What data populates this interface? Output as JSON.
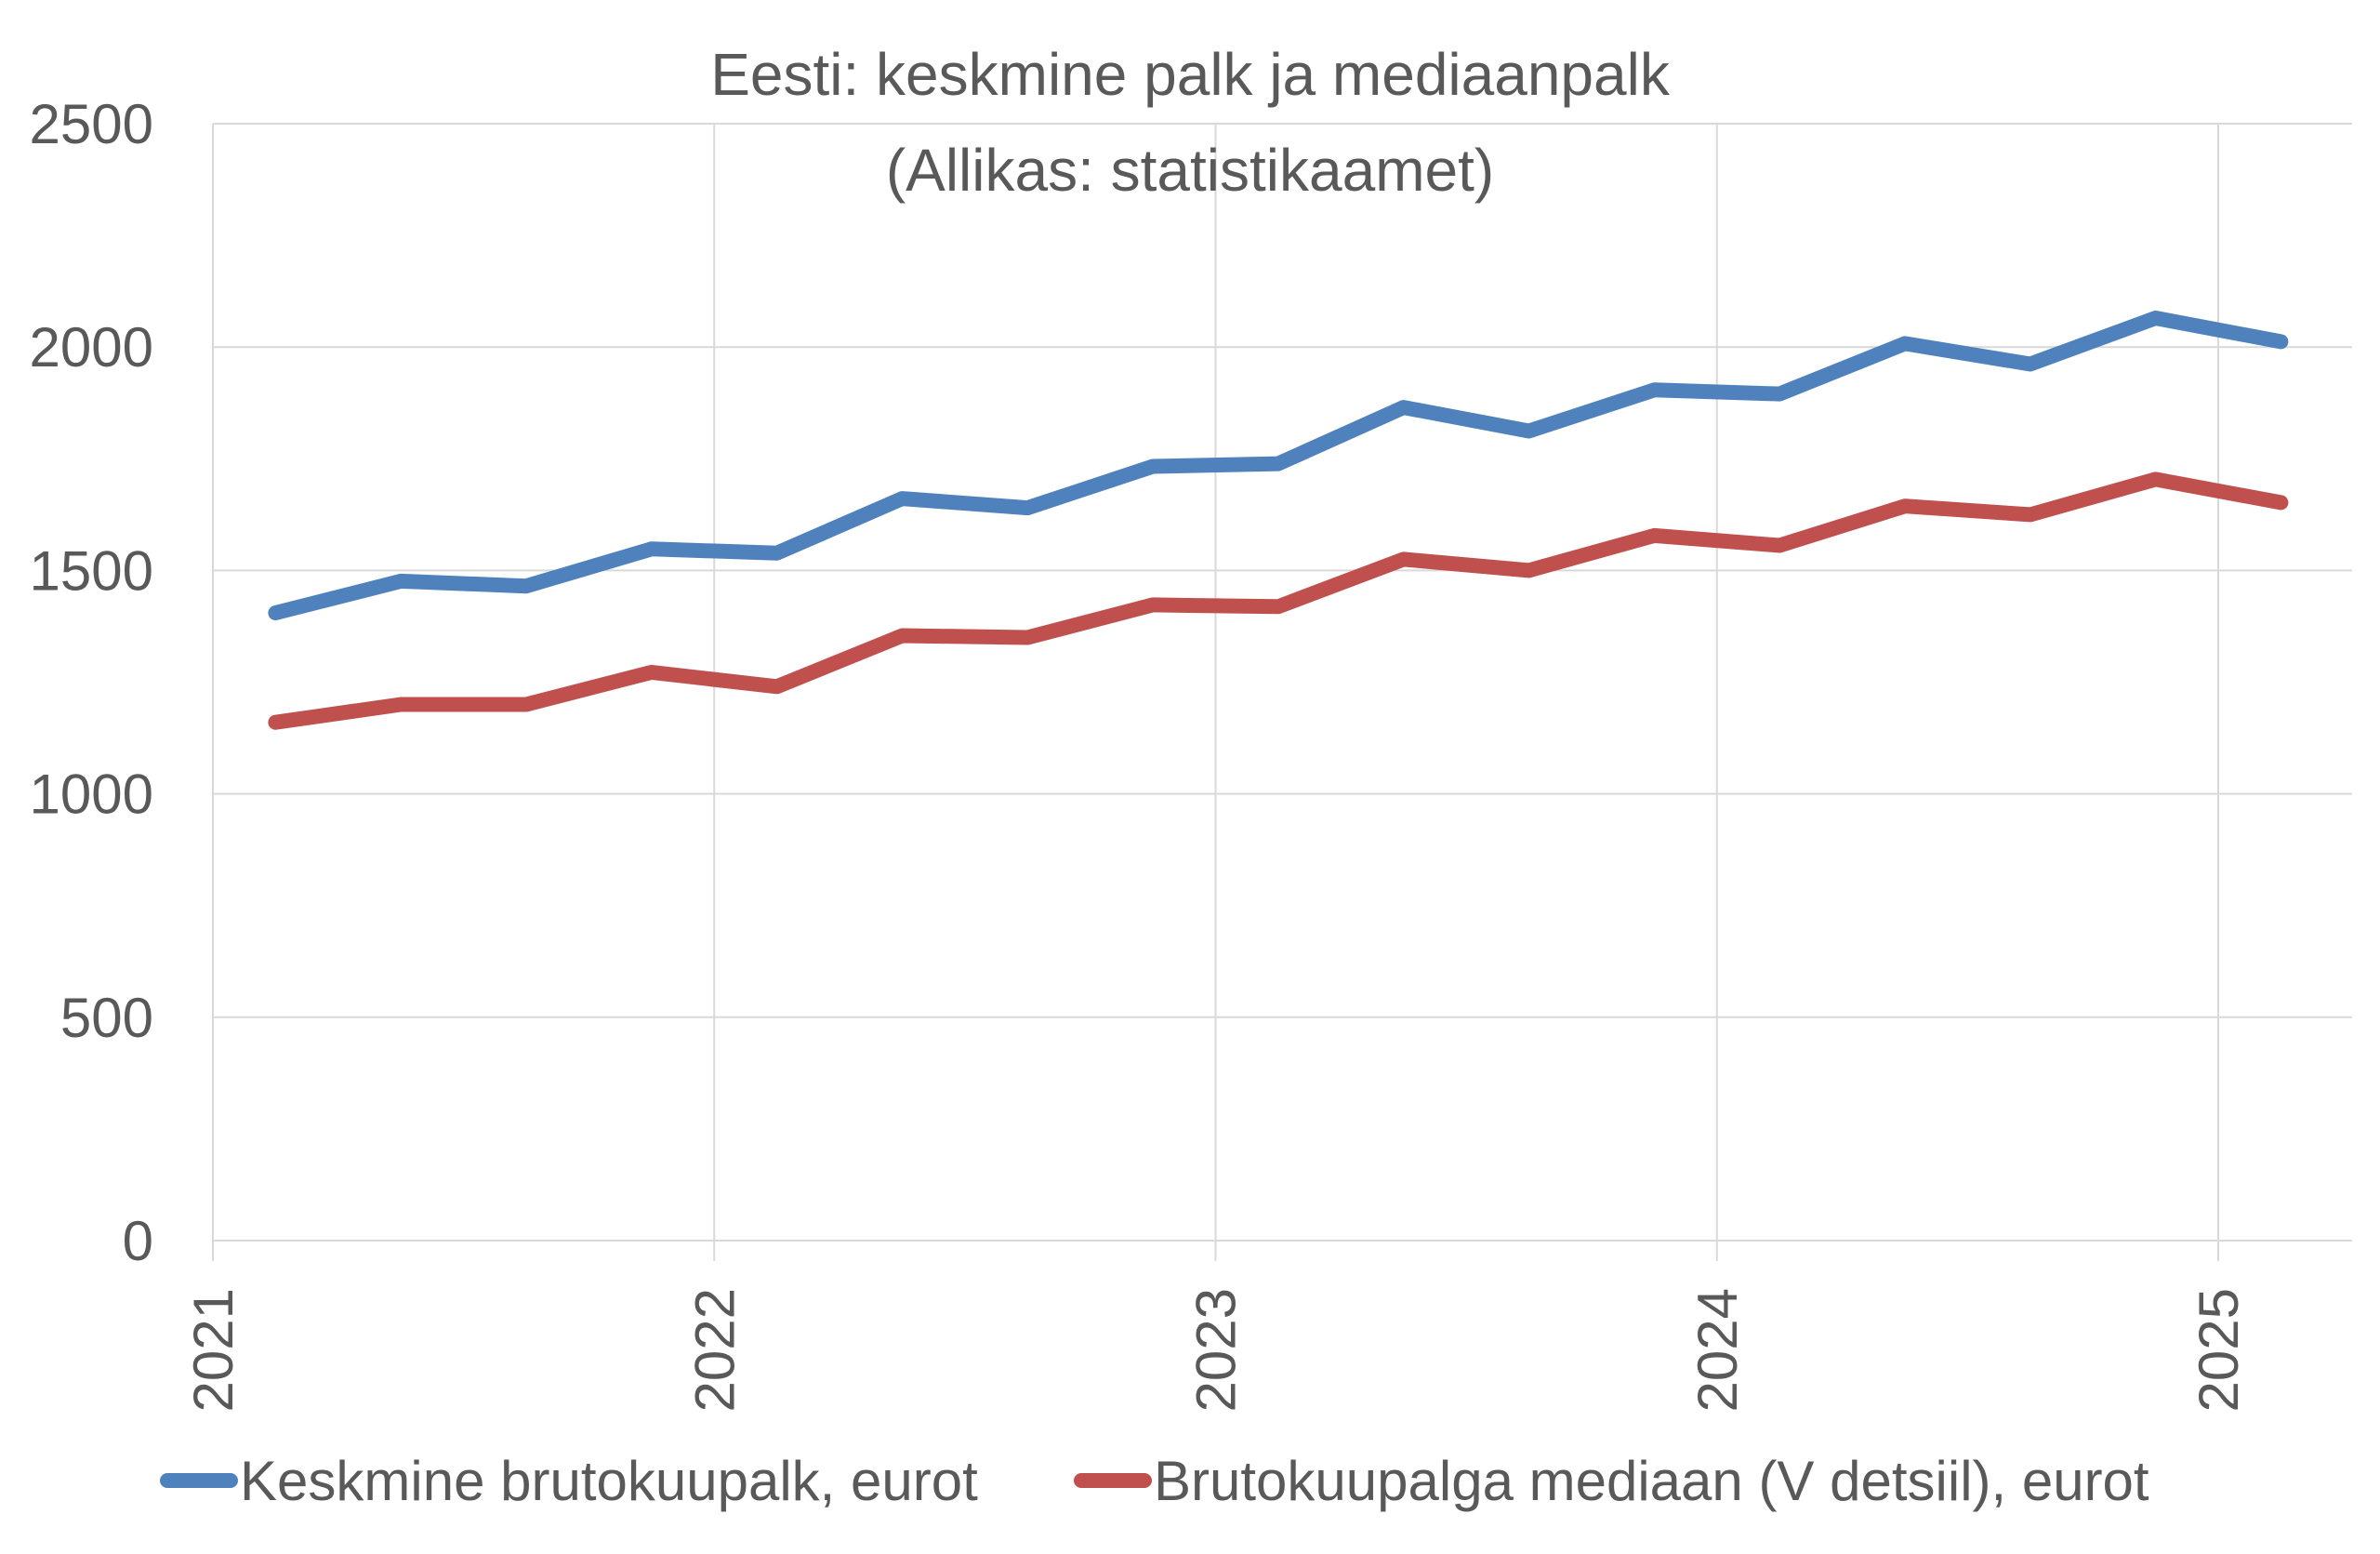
{
  "chart_data": {
    "type": "line",
    "title": "Eesti: keskmine palk ja mediaanpalk",
    "subtitle": "(Allikas: statistikaamet)",
    "ylim": [
      0,
      2500
    ],
    "y_ticks": [
      "0",
      "500",
      "1000",
      "1500",
      "2000",
      "2500"
    ],
    "x_ticks": [
      "2021",
      "2022",
      "2023",
      "2024",
      "2025"
    ],
    "xlim": [
      2021,
      2025
    ],
    "grid": true,
    "legend_position": "bottom",
    "x": [
      2021.125,
      2021.375,
      2021.625,
      2021.875,
      2022.125,
      2022.375,
      2022.625,
      2022.875,
      2023.125,
      2023.375,
      2023.625,
      2023.875,
      2024.125,
      2024.375,
      2024.625,
      2024.875,
      2025.125
    ],
    "series": [
      {
        "name": "Keskmine brutokuupalk, eurot",
        "color": "#4f81bd",
        "values": [
          1405,
          1476,
          1465,
          1548,
          1539,
          1661,
          1640,
          1733,
          1739,
          1865,
          1812,
          1904,
          1895,
          2008,
          1962,
          2065,
          2012
        ]
      },
      {
        "name": "Brutokuupalga mediaan (V detsiil), eurot",
        "color": "#c0504d",
        "values": [
          1160,
          1200,
          1200,
          1272,
          1240,
          1354,
          1350,
          1423,
          1419,
          1525,
          1500,
          1578,
          1556,
          1644,
          1625,
          1704,
          1652
        ]
      }
    ]
  }
}
